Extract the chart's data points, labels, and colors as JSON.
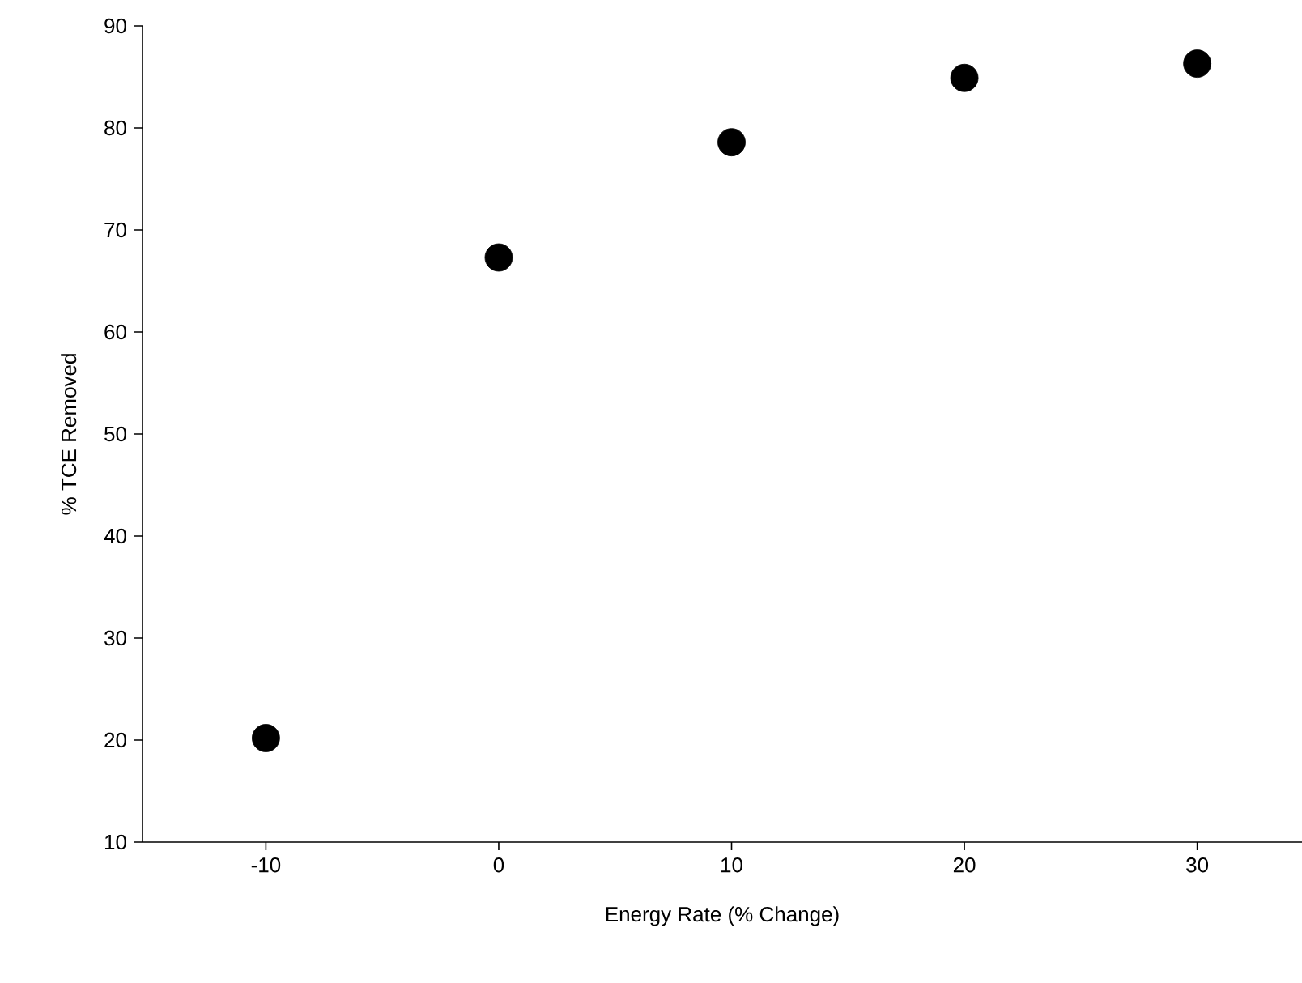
{
  "chart_data": {
    "type": "scatter",
    "xlabel": "Energy Rate (% Change)",
    "ylabel": "% TCE Removed",
    "x": [
      -10,
      0,
      10,
      20,
      30
    ],
    "values": [
      20.2,
      67.3,
      78.6,
      84.9,
      86.3
    ],
    "color": "#000000",
    "marker": "circle",
    "xlim": [
      -15.3,
      34.5
    ],
    "ylim": [
      10,
      90
    ],
    "xticks": [
      -10,
      0,
      10,
      20,
      30
    ],
    "yticks": [
      10,
      20,
      30,
      40,
      50,
      60,
      70,
      80,
      90
    ]
  }
}
